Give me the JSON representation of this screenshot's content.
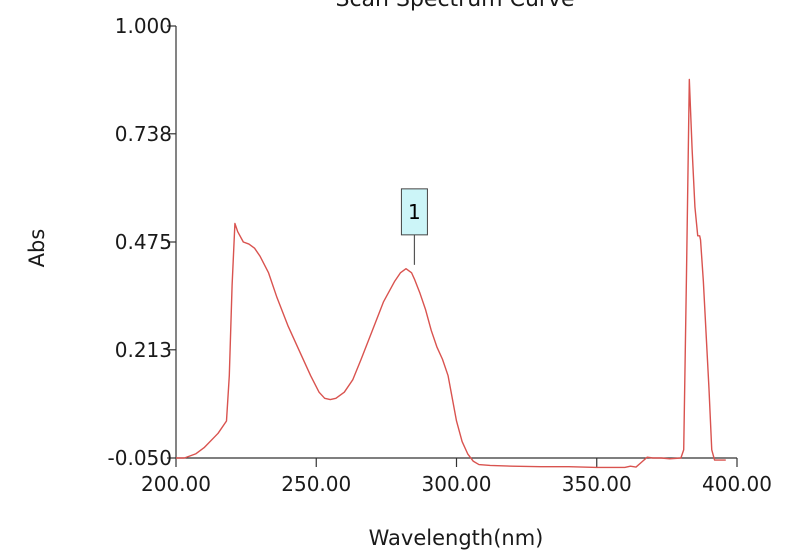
{
  "chart_data": {
    "type": "line",
    "title": "Scan Spectrum Curve",
    "xlabel": "Wavelength(nm)",
    "ylabel": "Abs",
    "xlim": [
      200,
      400
    ],
    "ylim": [
      -0.05,
      1.0
    ],
    "x_ticks": [
      "200.00",
      "250.00",
      "300.00",
      "350.00",
      "400.00"
    ],
    "y_ticks": [
      "-0.050",
      "0.213",
      "0.475",
      "0.738",
      "1.000"
    ],
    "grid": false,
    "line_color": "#d9534f",
    "series": [
      {
        "x": [
          200,
          203,
          207,
          210,
          215,
          218,
          219,
          220,
          221,
          222,
          224,
          226,
          228,
          230,
          233,
          236,
          240,
          244,
          248,
          251,
          253,
          255,
          257,
          260,
          263,
          266,
          270,
          274,
          278,
          280,
          282,
          284,
          285,
          287,
          289,
          291,
          293,
          295,
          297,
          300,
          302,
          304,
          306,
          308,
          312,
          320,
          330,
          340,
          350,
          360,
          362,
          364,
          366,
          368,
          370,
          373,
          376,
          380,
          381,
          382,
          383,
          384,
          385,
          386,
          386.7,
          387,
          388,
          389,
          390,
          391,
          392,
          393,
          394,
          396
        ],
        "y": [
          -0.05,
          -0.05,
          -0.04,
          -0.025,
          0.01,
          0.04,
          0.15,
          0.37,
          0.52,
          0.5,
          0.475,
          0.47,
          0.46,
          0.44,
          0.4,
          0.34,
          0.27,
          0.21,
          0.15,
          0.11,
          0.095,
          0.092,
          0.095,
          0.11,
          0.14,
          0.19,
          0.26,
          0.33,
          0.38,
          0.4,
          0.41,
          0.4,
          0.385,
          0.35,
          0.31,
          0.26,
          0.22,
          0.19,
          0.15,
          0.04,
          -0.01,
          -0.04,
          -0.058,
          -0.066,
          -0.068,
          -0.07,
          -0.071,
          -0.071,
          -0.073,
          -0.073,
          -0.07,
          -0.072,
          -0.06,
          -0.048,
          -0.05,
          -0.05,
          -0.052,
          -0.05,
          -0.03,
          0.4,
          0.87,
          0.7,
          0.56,
          0.49,
          0.49,
          0.48,
          0.38,
          0.25,
          0.12,
          -0.03,
          -0.055,
          -0.055,
          -0.055,
          -0.055
        ]
      }
    ],
    "annotations": [
      {
        "label": "1",
        "x": 285,
        "y": 0.4,
        "bg_color": "#ccf5f8"
      }
    ]
  }
}
